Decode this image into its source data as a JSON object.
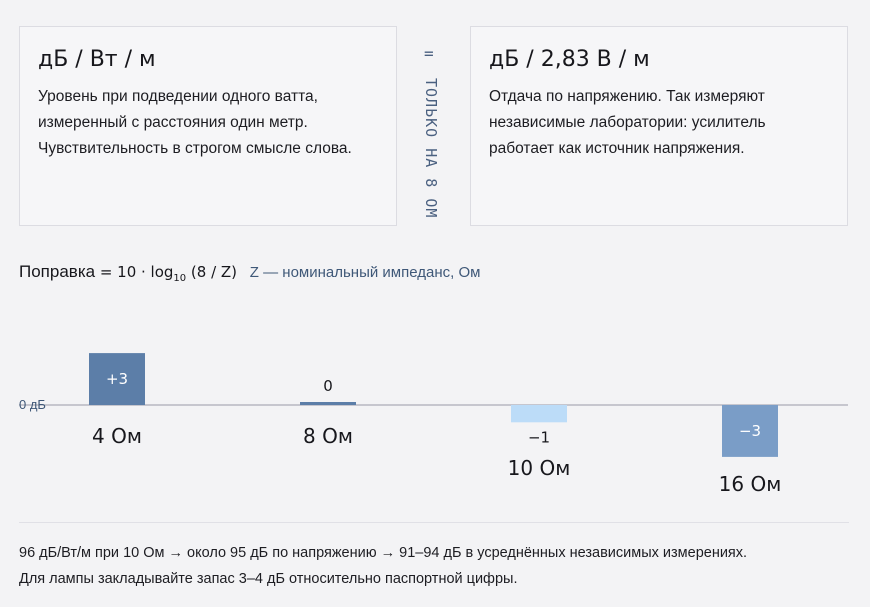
{
  "cards": {
    "left": {
      "title": "дБ / Вт / м",
      "lines": [
        "Уровень при подведении одного ватта,",
        "измеренный с расстояния один метр.",
        "Чувствительность в строгом смысле слова."
      ]
    },
    "right": {
      "title": "дБ / 2,83 В / м",
      "lines": [
        "Отдача по напряжению. Так измеряют",
        "независимые лаборатории: усилитель",
        "работает как источник напряжения."
      ]
    }
  },
  "equality": {
    "sign": "=",
    "note": "ТОЛЬКО НА 8 ОМ"
  },
  "formula": {
    "label": "Поправка",
    "expr_prefix": "= 10 · log",
    "expr_sub": "10",
    "expr_suffix": " (8 / Z)",
    "note": "Z — номинальный импеданс, Ом"
  },
  "chart_data": {
    "type": "bar",
    "categories": [
      "4 Ом",
      "8 Ом",
      "10 Ом",
      "16 Ом"
    ],
    "values": [
      3,
      0,
      -1,
      -3
    ],
    "data_labels": [
      "+3",
      "0",
      "−1",
      "−3"
    ],
    "baseline_label": "0 дБ",
    "ylim": [
      -3,
      3
    ],
    "grid": false,
    "colors": {
      "positive": "#5c7ea8",
      "zero": "#5c7ea8",
      "small_negative": "#bcdcf8",
      "negative": "#7a9dc7",
      "baseline": "#9a9aa6"
    }
  },
  "footer": {
    "lines": [
      "96 дБ/Вт/м при 10 Ом → около 95 дБ по напряжению → 91–94 дБ в усреднённых независимых измерениях.",
      "Для лампы закладывайте запас 3–4 дБ относительно паспортной цифры."
    ]
  }
}
